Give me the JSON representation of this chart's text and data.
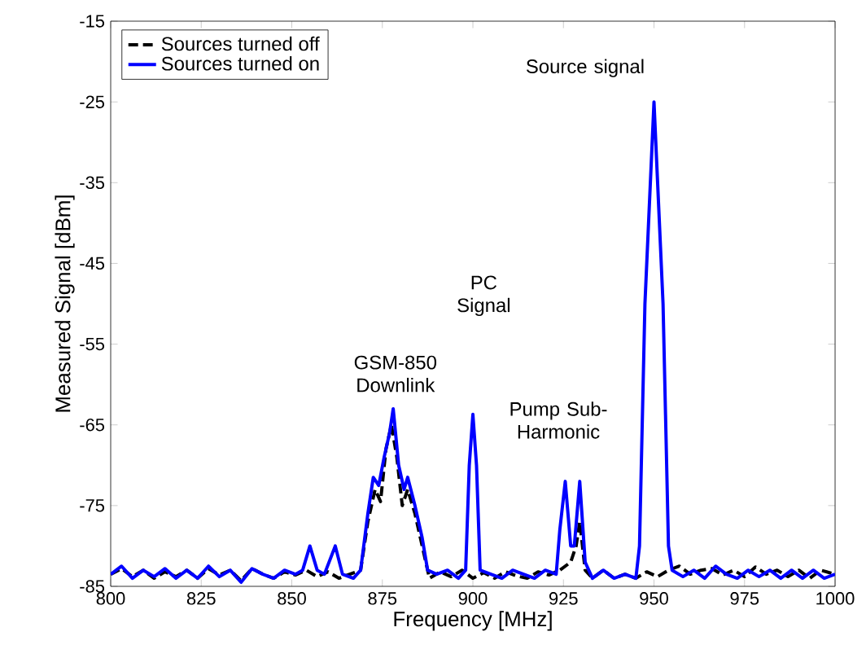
{
  "chart_data": {
    "type": "line",
    "xlabel": "Frequency [MHz]",
    "ylabel": "Measured Signal [dBm]",
    "xlim": [
      800,
      1000
    ],
    "ylim": [
      -85,
      -15
    ],
    "xticks": [
      800,
      825,
      850,
      875,
      900,
      925,
      950,
      975,
      1000
    ],
    "yticks": [
      -85,
      -75,
      -65,
      -55,
      -45,
      -35,
      -25,
      -15
    ],
    "legend": "top left",
    "series": [
      {
        "name": "Sources turned off",
        "color": "#000000",
        "line_style": "dashed",
        "x": [
          800,
          803,
          806,
          809,
          812,
          815,
          818,
          821,
          824,
          827,
          830,
          833,
          836,
          839,
          842,
          845,
          848,
          851,
          854,
          857,
          860,
          863,
          866,
          869,
          871,
          873,
          874.5,
          876,
          877.5,
          879,
          880.5,
          882,
          884,
          886,
          888,
          891,
          894,
          897,
          900,
          903,
          906,
          909,
          912,
          915,
          918,
          921,
          924,
          927,
          928.5,
          929.5,
          931,
          933,
          936,
          939,
          942,
          945,
          948,
          951,
          954,
          957,
          960,
          963,
          966,
          969,
          972,
          975,
          978,
          981,
          984,
          987,
          990,
          993,
          996,
          1000
        ],
        "values": [
          -83.5,
          -82.8,
          -83.8,
          -83,
          -84,
          -83.2,
          -83.8,
          -83,
          -84,
          -82.8,
          -83.6,
          -83,
          -84.3,
          -82.8,
          -83.5,
          -84,
          -83.2,
          -83.6,
          -83,
          -83.8,
          -83.2,
          -84,
          -83.5,
          -83,
          -77,
          -73,
          -74.5,
          -68,
          -65,
          -69,
          -75,
          -73,
          -76,
          -80,
          -84,
          -83.2,
          -83.8,
          -83,
          -84,
          -83.3,
          -84,
          -83.2,
          -83.7,
          -84,
          -83.2,
          -83.6,
          -83,
          -82,
          -80,
          -77,
          -83,
          -84,
          -83,
          -84,
          -83.5,
          -84,
          -83.2,
          -83.8,
          -83,
          -82.5,
          -83.5,
          -83,
          -82.8,
          -83.6,
          -83,
          -83.8,
          -82.6,
          -83.5,
          -83,
          -83.8,
          -83,
          -84,
          -83,
          -83.5
        ]
      },
      {
        "name": "Sources turned on",
        "color": "#0000ff",
        "line_style": "solid",
        "x": [
          800,
          803,
          806,
          809,
          812,
          815,
          818,
          821,
          824,
          827,
          830,
          833,
          836,
          839,
          842,
          845,
          848,
          851,
          853,
          855,
          857,
          859,
          862,
          864,
          867,
          869,
          871,
          872.5,
          874,
          875.5,
          877,
          878,
          879.5,
          881,
          882,
          884,
          886,
          887.5,
          890,
          893,
          896,
          898,
          899,
          900,
          901,
          902,
          905,
          908,
          911,
          914,
          917,
          920,
          923,
          924,
          925.5,
          927,
          928,
          929.5,
          931,
          933,
          936,
          939,
          942,
          945,
          946,
          947.5,
          950,
          952.5,
          954,
          955,
          958,
          961,
          964,
          967,
          970,
          973,
          976,
          979,
          982,
          985,
          988,
          991,
          994,
          997,
          1000
        ],
        "values": [
          -83.5,
          -82.5,
          -84,
          -83,
          -83.8,
          -82.8,
          -84,
          -83,
          -84,
          -82.5,
          -83.8,
          -83,
          -84.5,
          -82.8,
          -83.5,
          -84,
          -83,
          -83.5,
          -83,
          -80,
          -83,
          -83.5,
          -80,
          -83.5,
          -84,
          -83,
          -76,
          -71.5,
          -72.5,
          -69,
          -66,
          -63,
          -70,
          -73,
          -71.5,
          -75,
          -79,
          -83,
          -83.5,
          -83,
          -84,
          -83,
          -70,
          -63.7,
          -70,
          -83,
          -83.5,
          -84,
          -83,
          -83.5,
          -84,
          -83,
          -83.5,
          -78,
          -72,
          -80,
          -80,
          -72,
          -82,
          -84,
          -83,
          -84,
          -83.5,
          -84,
          -80,
          -50,
          -25,
          -50,
          -80,
          -83,
          -83.8,
          -83,
          -84,
          -82.5,
          -83.5,
          -84,
          -83,
          -83.8,
          -83,
          -84,
          -83,
          -84,
          -83,
          -84,
          -83.5
        ]
      }
    ],
    "annotations": [
      "GSM-850 Downlink",
      "PC Signal",
      "Pump Sub-Harmonic",
      "Source signal"
    ]
  }
}
